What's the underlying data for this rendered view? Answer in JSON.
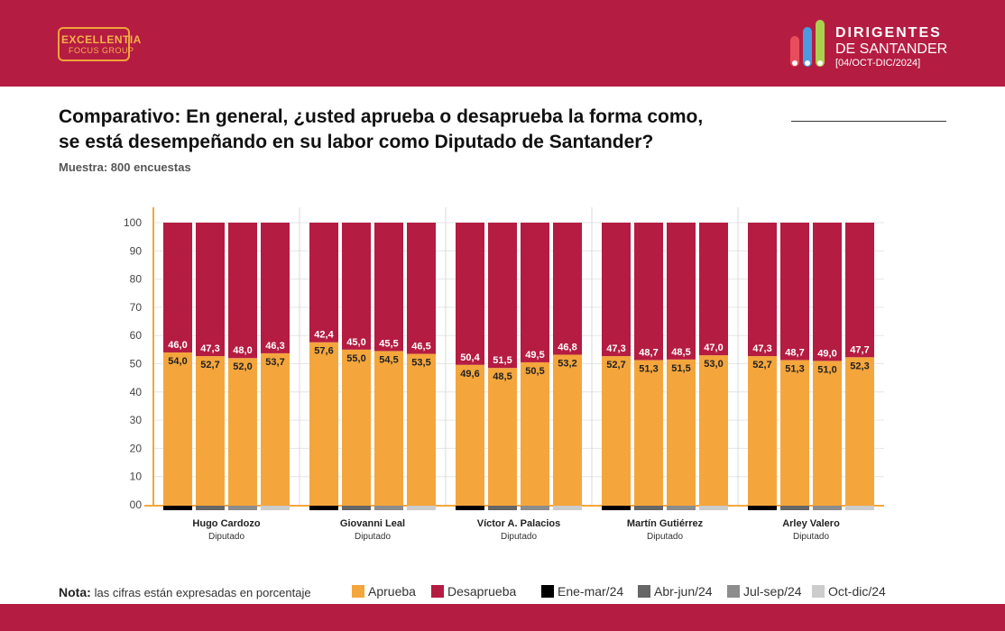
{
  "header": {
    "logo_left_line1": "EXCELLENTIA",
    "logo_left_line2": "FOCUS GROUP",
    "logo_right_line1": "DIRIGENTES",
    "logo_right_line2": "DE SANTANDER",
    "logo_right_line3": "[04/OCT-DIC/2024]"
  },
  "colors": {
    "brand": "#b51c42",
    "aprueba": "#f4a63d",
    "desaprueba": "#b51c42",
    "ene_mar": "#000000",
    "abr_jun": "#666666",
    "jul_sep": "#8c8c8c",
    "oct_dic": "#cccccc",
    "axis": "#f4a63d"
  },
  "footer": {
    "note_key": "Nota:",
    "note_value": "las cifras están expresadas en porcentaje"
  },
  "legend": {
    "aprueba": "Aprueba",
    "desaprueba": "Desaprueba",
    "periods": [
      "Ene-mar/24",
      "Abr-jun/24",
      "Jul-sep/24",
      "Oct-dic/24"
    ]
  },
  "chart_data": {
    "type": "bar",
    "stacked": true,
    "title": "Comparativo: En general, ¿usted aprueba o desaprueba la forma como, _______________ se está desempeñando en su labor como Diputado de Santander?",
    "subtitle": "Muestra: 800 encuestas",
    "ylim": [
      0,
      100
    ],
    "yticks": [
      "00",
      "10",
      "20",
      "30",
      "40",
      "50",
      "60",
      "70",
      "80",
      "90",
      "100"
    ],
    "grid": true,
    "legend_position": "bottom",
    "periods": [
      "Ene-mar/24",
      "Abr-jun/24",
      "Jul-sep/24",
      "Oct-dic/24"
    ],
    "groups": [
      {
        "name": "Hugo Cardozo",
        "role": "Diputado",
        "aprueba": [
          54.0,
          52.7,
          52.0,
          53.7
        ],
        "desaprueba": [
          46.0,
          47.3,
          48.0,
          46.3
        ],
        "aprueba_labels": [
          "54,0",
          "52,7",
          "52,0",
          "53,7"
        ],
        "desaprueba_labels": [
          "46,0",
          "47,3",
          "48,0",
          "46,3"
        ]
      },
      {
        "name": "Giovanni Leal",
        "role": "Diputado",
        "aprueba": [
          57.6,
          55.0,
          54.5,
          53.5
        ],
        "desaprueba": [
          42.4,
          45.0,
          45.5,
          46.5
        ],
        "aprueba_labels": [
          "57,6",
          "55,0",
          "54,5",
          "53,5"
        ],
        "desaprueba_labels": [
          "42,4",
          "45,0",
          "45,5",
          "46,5"
        ]
      },
      {
        "name": "Víctor A. Palacios",
        "role": "Diputado",
        "aprueba": [
          49.6,
          48.5,
          50.5,
          53.2
        ],
        "desaprueba": [
          50.4,
          51.5,
          49.5,
          46.8
        ],
        "aprueba_labels": [
          "49,6",
          "48,5",
          "50,5",
          "53,2"
        ],
        "desaprueba_labels": [
          "50,4",
          "51,5",
          "49,5",
          "46,8"
        ]
      },
      {
        "name": "Martín Gutiérrez",
        "role": "Diputado",
        "aprueba": [
          52.7,
          51.3,
          51.5,
          53.0
        ],
        "desaprueba": [
          47.3,
          48.7,
          48.5,
          47.0
        ],
        "aprueba_labels": [
          "52,7",
          "51,3",
          "51,5",
          "53,0"
        ],
        "desaprueba_labels": [
          "47,3",
          "48,7",
          "48,5",
          "47,0"
        ]
      },
      {
        "name": "Arley Valero",
        "role": "Diputado",
        "aprueba": [
          52.7,
          51.3,
          51.0,
          52.3
        ],
        "desaprueba": [
          47.3,
          48.7,
          49.0,
          47.7
        ],
        "aprueba_labels": [
          "52,7",
          "51,3",
          "51,0",
          "52,3"
        ],
        "desaprueba_labels": [
          "47,3",
          "48,7",
          "49,0",
          "47,7"
        ]
      }
    ]
  }
}
